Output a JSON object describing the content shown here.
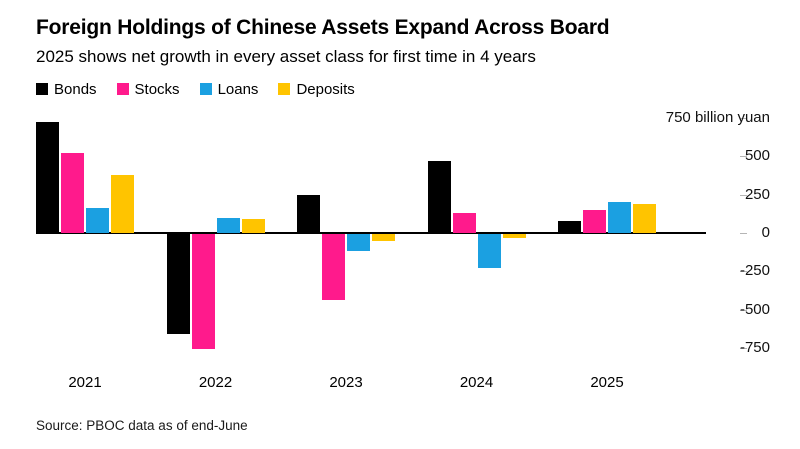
{
  "header": {
    "title": "Foreign Holdings of Chinese Assets Expand Across Board",
    "subtitle": "2025 shows net growth in every asset class for first time in 4 years"
  },
  "source": "Source: PBOC data as of end-June",
  "chart_data": {
    "type": "bar",
    "title": "Foreign Holdings of Chinese Assets Expand Across Board",
    "subtitle": "2025 shows net growth in every asset class for first time in 4 years",
    "unit": "billion yuan",
    "categories": [
      "2021",
      "2022",
      "2023",
      "2024",
      "2025"
    ],
    "series": [
      {
        "name": "Bonds",
        "color": "#000000",
        "values": [
          720,
          -650,
          250,
          470,
          80
        ]
      },
      {
        "name": "Stocks",
        "color": "#ff1a8c",
        "values": [
          520,
          -750,
          -430,
          130,
          150
        ]
      },
      {
        "name": "Loans",
        "color": "#1ba0e1",
        "values": [
          160,
          95,
          -110,
          -220,
          200
        ]
      },
      {
        "name": "Deposits",
        "color": "#ffc400",
        "values": [
          380,
          90,
          -45,
          -25,
          185
        ]
      }
    ],
    "y_axis": {
      "ticks": [
        {
          "value": 750,
          "label": "750 billion yuan"
        },
        {
          "value": 500,
          "label": "500"
        },
        {
          "value": 250,
          "label": "250"
        },
        {
          "value": 0,
          "label": "0"
        },
        {
          "value": -250,
          "label": "-250"
        },
        {
          "value": -500,
          "label": "-500"
        },
        {
          "value": -750,
          "label": "-750"
        }
      ]
    },
    "ylim": [
      -850,
      790
    ],
    "grid": false,
    "legend_position": "top-left",
    "source": "Source: PBOC data as of end-June"
  }
}
